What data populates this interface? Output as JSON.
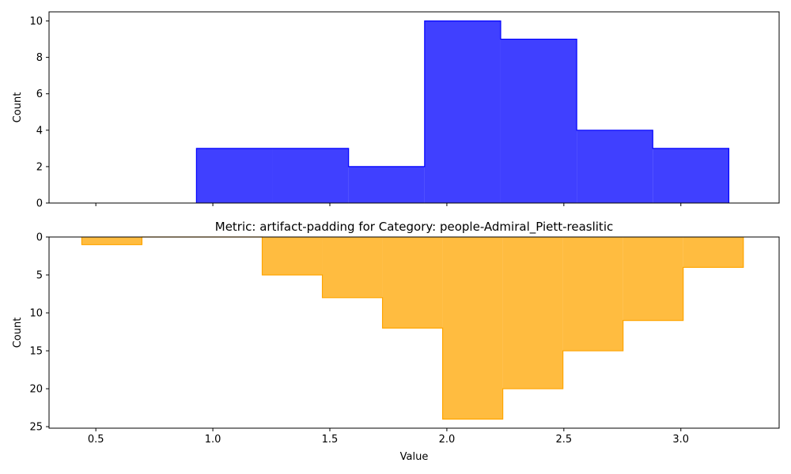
{
  "chart_data": [
    {
      "type": "histogram",
      "panel": "top",
      "title": "",
      "xlabel": "",
      "ylabel": "Count",
      "color": "#0000ff",
      "fill_opacity": 0.75,
      "bins": [
        {
          "x0": 0.93,
          "x1": 1.255,
          "count": 3
        },
        {
          "x0": 1.255,
          "x1": 1.58,
          "count": 3
        },
        {
          "x0": 1.58,
          "x1": 1.905,
          "count": 2
        },
        {
          "x0": 1.905,
          "x1": 2.23,
          "count": 10
        },
        {
          "x0": 2.23,
          "x1": 2.555,
          "count": 9
        },
        {
          "x0": 2.555,
          "x1": 2.88,
          "count": 4
        },
        {
          "x0": 2.88,
          "x1": 3.205,
          "count": 3
        }
      ],
      "xlim": [
        0.3,
        3.42
      ],
      "ylim": [
        0,
        10.5
      ],
      "yticks": [
        0,
        2,
        4,
        6,
        8,
        10
      ],
      "xticks": [
        0.5,
        1.0,
        1.5,
        2.0,
        2.5,
        3.0
      ],
      "xtick_labels_visible": false,
      "y_inverted": false
    },
    {
      "type": "histogram",
      "panel": "bottom",
      "title": "Metric: artifact-padding for Category: people-Admiral_Piett-reaslitic",
      "xlabel": "Value",
      "ylabel": "Count",
      "color": "#ffa500",
      "fill_opacity": 0.75,
      "bins": [
        {
          "x0": 0.44,
          "x1": 0.697,
          "count": 1
        },
        {
          "x0": 0.697,
          "x1": 0.954,
          "count": 0
        },
        {
          "x0": 0.954,
          "x1": 1.211,
          "count": 0
        },
        {
          "x0": 1.211,
          "x1": 1.468,
          "count": 5
        },
        {
          "x0": 1.468,
          "x1": 1.725,
          "count": 8
        },
        {
          "x0": 1.725,
          "x1": 1.982,
          "count": 12
        },
        {
          "x0": 1.982,
          "x1": 2.239,
          "count": 24
        },
        {
          "x0": 2.239,
          "x1": 2.496,
          "count": 20
        },
        {
          "x0": 2.496,
          "x1": 2.753,
          "count": 15
        },
        {
          "x0": 2.753,
          "x1": 3.01,
          "count": 11
        },
        {
          "x0": 3.01,
          "x1": 3.267,
          "count": 4
        }
      ],
      "xlim": [
        0.3,
        3.42
      ],
      "ylim": [
        0,
        25.2
      ],
      "yticks": [
        0,
        5,
        10,
        15,
        20,
        25
      ],
      "xticks": [
        0.5,
        1.0,
        1.5,
        2.0,
        2.5,
        3.0
      ],
      "xtick_labels": [
        "0.5",
        "1.0",
        "1.5",
        "2.0",
        "2.5",
        "3.0"
      ],
      "xtick_labels_visible": true,
      "y_inverted": true
    }
  ]
}
